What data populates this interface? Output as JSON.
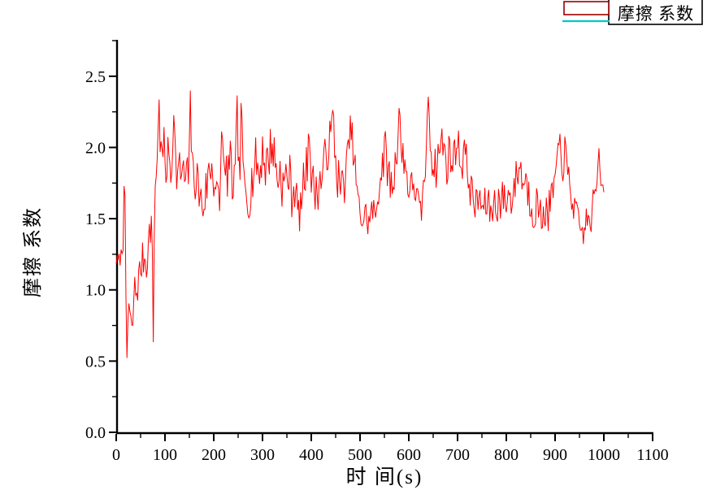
{
  "page": {
    "background": "#ffffff"
  },
  "chart_data": {
    "type": "line",
    "title": "",
    "xlabel": "时 间(s)",
    "ylabel": "摩擦 系数",
    "legend": {
      "label": "摩擦 系数",
      "position": "top-right"
    },
    "series": [
      {
        "name": "摩擦 系数",
        "color": "#ff0000",
        "line_width": 1
      }
    ],
    "xlim": [
      0,
      1100
    ],
    "ylim": [
      0,
      2.75
    ],
    "grid": false,
    "x_major_tick_step": 100,
    "x_minor_tick_step": 50,
    "y_major_tick_step": 0.5,
    "y_minor_tick_step": 0.25,
    "x_tick_labels": [
      "0",
      "100",
      "200",
      "300",
      "400",
      "500",
      "600",
      "700",
      "800",
      "900",
      "1000",
      "1100"
    ],
    "y_tick_labels": [
      "0.0",
      "0.5",
      "1.0",
      "1.5",
      "2.0",
      "2.5"
    ],
    "x_major_ticks": [
      0,
      100,
      200,
      300,
      400,
      500,
      600,
      700,
      800,
      900,
      1000,
      1100
    ],
    "y_major_ticks": [
      0,
      0.5,
      1.0,
      1.5,
      2.0,
      2.5
    ],
    "sampling": {
      "t_start": 0,
      "t_end": 1000,
      "t_step": 2,
      "noise_seed": 7,
      "noise_gain": 1.8,
      "clamp_min": 0.45,
      "clamp_max": 2.52
    },
    "keyframes_note": "[time_s, mean_value, noise_half_amplitude] estimated from pixels",
    "keyframes": [
      [
        0,
        1.2,
        0.02
      ],
      [
        4,
        1.21,
        0.02
      ],
      [
        8,
        1.22,
        0.03
      ],
      [
        12,
        1.27,
        0.03
      ],
      [
        15,
        1.35,
        0.03
      ],
      [
        17,
        2.17,
        0.01
      ],
      [
        19,
        1.1,
        0.02
      ],
      [
        22,
        0.52,
        0.02
      ],
      [
        25,
        0.93,
        0.04
      ],
      [
        29,
        0.8,
        0.05
      ],
      [
        33,
        0.68,
        0.04
      ],
      [
        37,
        1.02,
        0.06
      ],
      [
        42,
        0.98,
        0.07
      ],
      [
        47,
        1.1,
        0.07
      ],
      [
        52,
        1.18,
        0.07
      ],
      [
        57,
        1.24,
        0.08
      ],
      [
        62,
        1.2,
        0.08
      ],
      [
        66,
        1.32,
        0.08
      ],
      [
        70,
        1.45,
        0.08
      ],
      [
        73,
        1.52,
        0.05
      ],
      [
        76,
        0.65,
        0.02
      ],
      [
        79,
        1.72,
        0.06
      ],
      [
        82,
        1.85,
        0.08
      ],
      [
        85,
        1.95,
        0.09
      ],
      [
        88,
        2.35,
        0.02
      ],
      [
        91,
        1.9,
        0.09
      ],
      [
        96,
        1.98,
        0.11
      ],
      [
        102,
        1.88,
        0.11
      ],
      [
        108,
        1.92,
        0.11
      ],
      [
        114,
        1.85,
        0.1
      ],
      [
        118,
        2.28,
        0.03
      ],
      [
        122,
        1.86,
        0.1
      ],
      [
        128,
        1.8,
        0.11
      ],
      [
        134,
        1.84,
        0.11
      ],
      [
        140,
        1.76,
        0.1
      ],
      [
        145,
        1.8,
        0.09
      ],
      [
        149,
        1.78,
        0.06
      ],
      [
        152,
        2.42,
        0.02
      ],
      [
        155,
        1.82,
        0.08
      ],
      [
        160,
        1.84,
        0.11
      ],
      [
        166,
        1.76,
        0.11
      ],
      [
        172,
        1.66,
        0.1
      ],
      [
        178,
        1.56,
        0.07
      ],
      [
        184,
        1.7,
        0.09
      ],
      [
        190,
        1.82,
        0.1
      ],
      [
        196,
        1.88,
        0.1
      ],
      [
        202,
        1.76,
        0.1
      ],
      [
        208,
        1.64,
        0.08
      ],
      [
        213,
        1.62,
        0.07
      ],
      [
        217,
        2.26,
        0.03
      ],
      [
        221,
        1.74,
        0.09
      ],
      [
        227,
        1.82,
        0.11
      ],
      [
        233,
        1.88,
        0.11
      ],
      [
        239,
        1.72,
        0.1
      ],
      [
        244,
        1.78,
        0.09
      ],
      [
        248,
        2.3,
        0.04
      ],
      [
        251,
        1.86,
        0.07
      ],
      [
        254,
        1.82,
        0.05
      ],
      [
        257,
        2.48,
        0.02
      ],
      [
        260,
        1.78,
        0.08
      ],
      [
        265,
        1.68,
        0.09
      ],
      [
        270,
        1.62,
        0.08
      ],
      [
        276,
        1.72,
        0.1
      ],
      [
        282,
        1.84,
        0.1
      ],
      [
        288,
        1.92,
        0.1
      ],
      [
        294,
        1.78,
        0.11
      ],
      [
        300,
        2.02,
        0.09
      ],
      [
        306,
        1.86,
        0.11
      ],
      [
        312,
        1.92,
        0.11
      ],
      [
        318,
        2.02,
        0.09
      ],
      [
        324,
        1.96,
        0.09
      ],
      [
        330,
        1.78,
        0.1
      ],
      [
        336,
        1.84,
        0.1
      ],
      [
        342,
        1.72,
        0.1
      ],
      [
        348,
        1.78,
        0.11
      ],
      [
        354,
        1.82,
        0.11
      ],
      [
        360,
        1.68,
        0.1
      ],
      [
        366,
        1.74,
        0.1
      ],
      [
        372,
        1.58,
        0.07
      ],
      [
        376,
        1.5,
        0.05
      ],
      [
        380,
        1.64,
        0.08
      ],
      [
        386,
        1.8,
        0.1
      ],
      [
        392,
        1.88,
        0.09
      ],
      [
        395,
        2.25,
        0.03
      ],
      [
        399,
        1.8,
        0.09
      ],
      [
        405,
        1.72,
        0.09
      ],
      [
        411,
        1.68,
        0.08
      ],
      [
        417,
        1.74,
        0.09
      ],
      [
        423,
        1.82,
        0.1
      ],
      [
        429,
        1.92,
        0.09
      ],
      [
        435,
        2.02,
        0.09
      ],
      [
        441,
        2.1,
        0.07
      ],
      [
        445,
        2.28,
        0.03
      ],
      [
        449,
        1.92,
        0.08
      ],
      [
        455,
        1.78,
        0.1
      ],
      [
        461,
        1.7,
        0.09
      ],
      [
        467,
        1.76,
        0.09
      ],
      [
        473,
        1.84,
        0.1
      ],
      [
        478,
        2.05,
        0.08
      ],
      [
        482,
        2.16,
        0.06
      ],
      [
        486,
        1.95,
        0.08
      ],
      [
        491,
        1.8,
        0.09
      ],
      [
        496,
        1.62,
        0.06
      ],
      [
        501,
        1.52,
        0.06
      ],
      [
        506,
        1.48,
        0.05
      ],
      [
        511,
        1.55,
        0.06
      ],
      [
        516,
        1.46,
        0.05
      ],
      [
        521,
        1.5,
        0.06
      ],
      [
        526,
        1.58,
        0.07
      ],
      [
        531,
        1.48,
        0.06
      ],
      [
        536,
        1.66,
        0.07
      ],
      [
        541,
        1.78,
        0.08
      ],
      [
        546,
        1.9,
        0.09
      ],
      [
        551,
        1.98,
        0.09
      ],
      [
        556,
        1.88,
        0.09
      ],
      [
        561,
        1.76,
        0.09
      ],
      [
        566,
        1.72,
        0.09
      ],
      [
        571,
        1.84,
        0.09
      ],
      [
        575,
        1.96,
        0.08
      ],
      [
        578,
        2.1,
        0.05
      ],
      [
        581,
        2.38,
        0.02
      ],
      [
        584,
        1.92,
        0.07
      ],
      [
        589,
        1.98,
        0.09
      ],
      [
        594,
        1.84,
        0.09
      ],
      [
        599,
        1.74,
        0.08
      ],
      [
        604,
        1.68,
        0.08
      ],
      [
        609,
        1.78,
        0.08
      ],
      [
        614,
        1.7,
        0.08
      ],
      [
        619,
        1.6,
        0.07
      ],
      [
        624,
        1.52,
        0.06
      ],
      [
        628,
        1.62,
        0.07
      ],
      [
        632,
        1.8,
        0.08
      ],
      [
        636,
        1.95,
        0.07
      ],
      [
        640,
        2.38,
        0.02
      ],
      [
        644,
        2.05,
        0.08
      ],
      [
        649,
        1.92,
        0.09
      ],
      [
        654,
        1.84,
        0.09
      ],
      [
        659,
        1.92,
        0.09
      ],
      [
        664,
        2.0,
        0.09
      ],
      [
        669,
        2.06,
        0.08
      ],
      [
        674,
        1.94,
        0.09
      ],
      [
        679,
        1.88,
        0.09
      ],
      [
        684,
        1.98,
        0.09
      ],
      [
        689,
        1.88,
        0.08
      ],
      [
        694,
        1.96,
        0.08
      ],
      [
        699,
        2.08,
        0.07
      ],
      [
        704,
        1.94,
        0.08
      ],
      [
        709,
        1.88,
        0.08
      ],
      [
        714,
        2.02,
        0.07
      ],
      [
        719,
        1.86,
        0.08
      ],
      [
        724,
        1.76,
        0.08
      ],
      [
        729,
        1.68,
        0.08
      ],
      [
        734,
        1.62,
        0.08
      ],
      [
        739,
        1.58,
        0.07
      ],
      [
        744,
        1.66,
        0.08
      ],
      [
        749,
        1.6,
        0.08
      ],
      [
        754,
        1.56,
        0.07
      ],
      [
        759,
        1.62,
        0.08
      ],
      [
        764,
        1.58,
        0.08
      ],
      [
        769,
        1.54,
        0.07
      ],
      [
        774,
        1.62,
        0.08
      ],
      [
        779,
        1.58,
        0.08
      ],
      [
        784,
        1.64,
        0.08
      ],
      [
        789,
        1.6,
        0.08
      ],
      [
        794,
        1.66,
        0.08
      ],
      [
        799,
        1.6,
        0.08
      ],
      [
        804,
        1.68,
        0.08
      ],
      [
        809,
        1.63,
        0.08
      ],
      [
        814,
        1.7,
        0.08
      ],
      [
        819,
        1.76,
        0.08
      ],
      [
        824,
        1.84,
        0.07
      ],
      [
        829,
        1.88,
        0.07
      ],
      [
        833,
        1.74,
        0.08
      ],
      [
        838,
        1.8,
        0.08
      ],
      [
        843,
        1.72,
        0.08
      ],
      [
        848,
        1.64,
        0.08
      ],
      [
        853,
        1.58,
        0.08
      ],
      [
        858,
        1.54,
        0.07
      ],
      [
        863,
        1.62,
        0.08
      ],
      [
        868,
        1.54,
        0.07
      ],
      [
        873,
        1.5,
        0.07
      ],
      [
        878,
        1.58,
        0.08
      ],
      [
        883,
        1.52,
        0.07
      ],
      [
        888,
        1.56,
        0.08
      ],
      [
        893,
        1.64,
        0.08
      ],
      [
        898,
        1.74,
        0.08
      ],
      [
        903,
        1.84,
        0.07
      ],
      [
        907,
        1.94,
        0.06
      ],
      [
        910,
        2.06,
        0.04
      ],
      [
        913,
        1.92,
        0.06
      ],
      [
        917,
        1.86,
        0.07
      ],
      [
        920,
        2.0,
        0.05
      ],
      [
        924,
        1.86,
        0.07
      ],
      [
        929,
        1.74,
        0.07
      ],
      [
        934,
        1.66,
        0.07
      ],
      [
        939,
        1.58,
        0.07
      ],
      [
        944,
        1.52,
        0.06
      ],
      [
        949,
        1.46,
        0.05
      ],
      [
        954,
        1.42,
        0.05
      ],
      [
        958,
        1.38,
        0.04
      ],
      [
        962,
        1.46,
        0.06
      ],
      [
        966,
        1.52,
        0.06
      ],
      [
        970,
        1.45,
        0.05
      ],
      [
        974,
        1.5,
        0.06
      ],
      [
        978,
        1.58,
        0.07
      ],
      [
        982,
        1.66,
        0.07
      ],
      [
        987,
        1.8,
        0.05
      ],
      [
        990,
        2.02,
        0.02
      ],
      [
        993,
        1.76,
        0.06
      ],
      [
        997,
        1.82,
        0.05
      ],
      [
        1000,
        1.7,
        0.02
      ]
    ]
  },
  "legend_box": {
    "border_color": "#000000",
    "sample_outline_color": "#990000",
    "underline_color": "#00c8c8",
    "fill": "#ffffff"
  },
  "axes": {
    "color": "#000000"
  }
}
